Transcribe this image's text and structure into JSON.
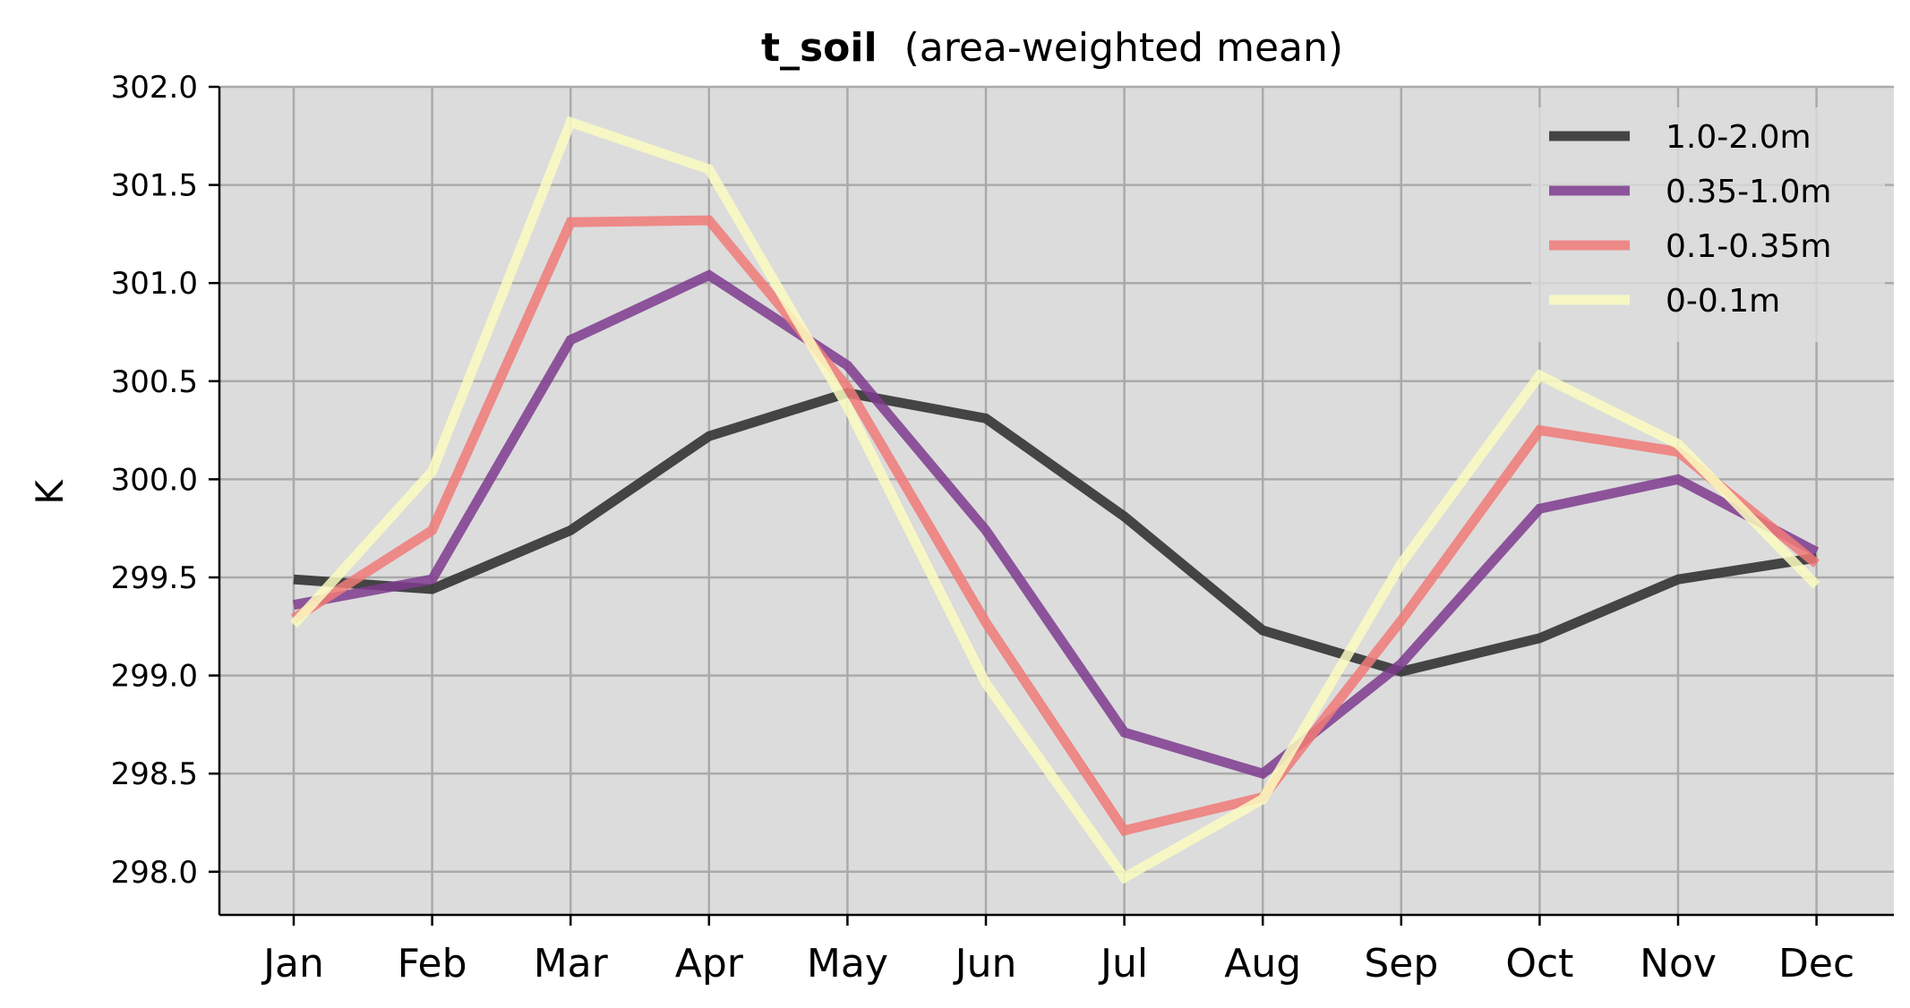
{
  "chart_data": {
    "type": "line",
    "title_bold": "t_soil",
    "title_rest": "(area-weighted mean)",
    "xlabel": "",
    "ylabel": "K",
    "categories": [
      "Jan",
      "Feb",
      "Mar",
      "Apr",
      "May",
      "Jun",
      "Jul",
      "Aug",
      "Sep",
      "Oct",
      "Nov",
      "Dec"
    ],
    "ylim": [
      297.78,
      302.0
    ],
    "yticks": [
      298.0,
      298.5,
      299.0,
      299.5,
      300.0,
      300.5,
      301.0,
      301.5,
      302.0
    ],
    "ytick_labels": [
      "298.0",
      "298.5",
      "299.0",
      "299.5",
      "300.0",
      "300.5",
      "301.0",
      "301.5",
      "302.0"
    ],
    "grid": true,
    "legend_position": "top-right",
    "background_color": "#dcdcdc",
    "series": [
      {
        "name": "1.0-2.0m",
        "color": "#333333",
        "opacity": 0.9,
        "values": [
          299.49,
          299.44,
          299.74,
          300.22,
          300.44,
          300.31,
          299.81,
          299.23,
          299.02,
          299.19,
          299.49,
          299.6
        ]
      },
      {
        "name": "0.35-1.0m",
        "color": "#7e3b8e",
        "opacity": 0.85,
        "values": [
          299.36,
          299.49,
          300.71,
          301.04,
          300.58,
          299.74,
          298.71,
          298.5,
          299.06,
          299.85,
          300.0,
          299.63
        ]
      },
      {
        "name": "0.1-0.35m",
        "color": "#f07a78",
        "opacity": 0.85,
        "values": [
          299.29,
          299.74,
          301.31,
          301.32,
          300.47,
          299.27,
          298.21,
          298.38,
          299.28,
          300.25,
          300.14,
          299.57
        ]
      },
      {
        "name": "0-0.1m",
        "color": "#fafcc0",
        "opacity": 0.85,
        "values": [
          299.26,
          300.04,
          301.82,
          301.58,
          300.37,
          298.96,
          297.97,
          298.37,
          299.57,
          300.53,
          300.18,
          299.46
        ]
      }
    ]
  }
}
